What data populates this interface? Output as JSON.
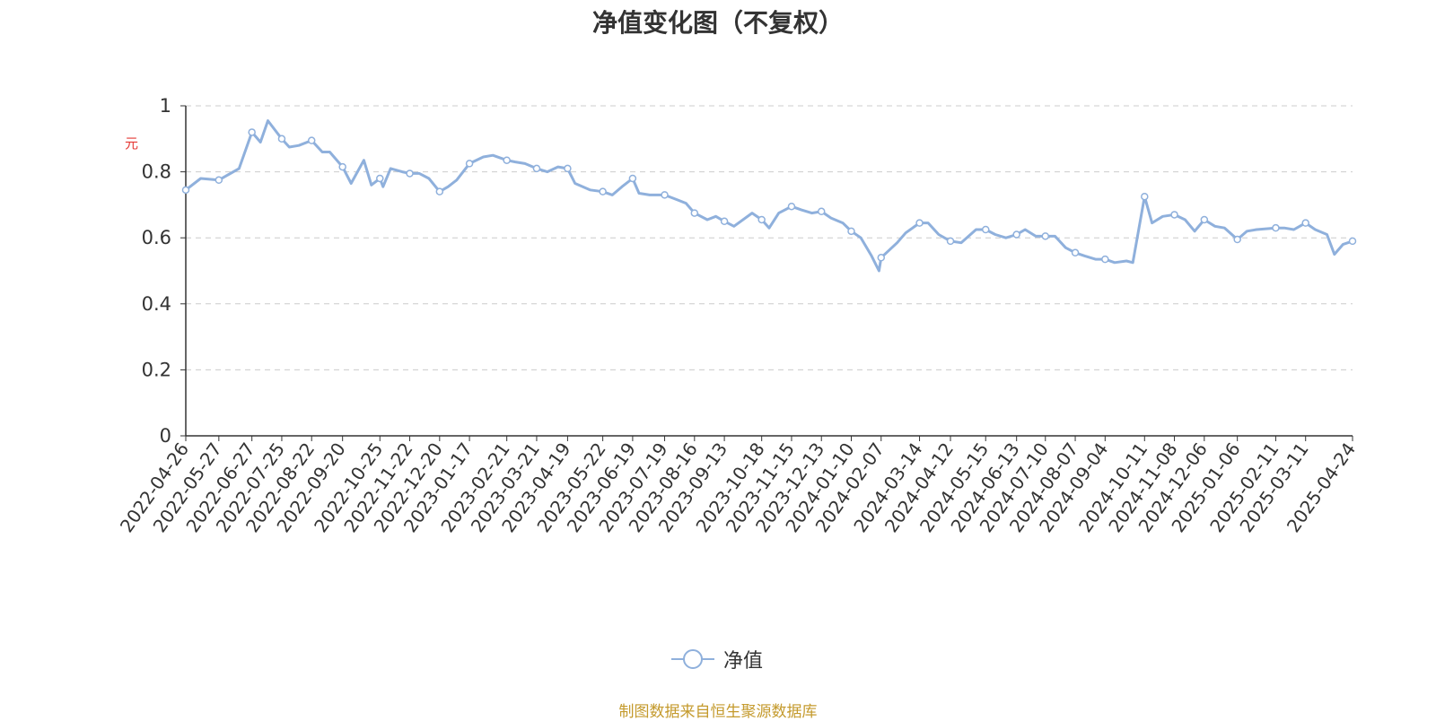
{
  "title": "净值变化图（不复权）",
  "unit_label": "元",
  "legend_label": "净值",
  "source": "制图数据来自恒生聚源数据库",
  "colors": {
    "line": "#8fb0dc",
    "marker_fill": "#ffffff",
    "grid": "#cccccc",
    "axis": "#333333",
    "unit": "#e53935",
    "source": "#c49a2c"
  },
  "chart_data": {
    "type": "line",
    "title": "净值变化图（不复权）",
    "ylabel": "元",
    "ylim": [
      0,
      1
    ],
    "yticks": [
      "0",
      "0.2",
      "0.4",
      "0.6",
      "0.8",
      "1"
    ],
    "grid": true,
    "legend_position": "bottom",
    "xticks": [
      "2022-04-26",
      "2022-05-27",
      "2022-06-27",
      "2022-07-25",
      "2022-08-22",
      "2022-09-20",
      "2022-10-25",
      "2022-11-22",
      "2022-12-20",
      "2023-01-17",
      "2023-02-21",
      "2023-03-21",
      "2023-04-19",
      "2023-05-22",
      "2023-06-19",
      "2023-07-19",
      "2023-08-16",
      "2023-09-13",
      "2023-10-18",
      "2023-11-15",
      "2023-12-13",
      "2024-01-10",
      "2024-02-07",
      "2024-03-14",
      "2024-04-12",
      "2024-05-15",
      "2024-06-13",
      "2024-07-10",
      "2024-08-07",
      "2024-09-04",
      "2024-10-11",
      "2024-11-08",
      "2024-12-06",
      "2025-01-06",
      "2025-02-11",
      "2025-03-11",
      "2025-04-24"
    ],
    "series": [
      {
        "name": "净值",
        "x": [
          "2022-04-26",
          "2022-05-10",
          "2022-05-27",
          "2022-06-15",
          "2022-06-27",
          "2022-07-05",
          "2022-07-12",
          "2022-07-25",
          "2022-08-01",
          "2022-08-10",
          "2022-08-22",
          "2022-09-01",
          "2022-09-08",
          "2022-09-20",
          "2022-09-28",
          "2022-10-10",
          "2022-10-17",
          "2022-10-25",
          "2022-10-28",
          "2022-11-04",
          "2022-11-15",
          "2022-11-22",
          "2022-12-01",
          "2022-12-10",
          "2022-12-20",
          "2022-12-28",
          "2023-01-05",
          "2023-01-17",
          "2023-01-30",
          "2023-02-08",
          "2023-02-21",
          "2023-03-01",
          "2023-03-10",
          "2023-03-21",
          "2023-03-31",
          "2023-04-10",
          "2023-04-19",
          "2023-04-26",
          "2023-05-10",
          "2023-05-22",
          "2023-05-31",
          "2023-06-09",
          "2023-06-19",
          "2023-06-25",
          "2023-07-05",
          "2023-07-19",
          "2023-07-31",
          "2023-08-08",
          "2023-08-16",
          "2023-08-28",
          "2023-09-05",
          "2023-09-13",
          "2023-09-22",
          "2023-10-09",
          "2023-10-18",
          "2023-10-25",
          "2023-11-03",
          "2023-11-15",
          "2023-11-24",
          "2023-12-04",
          "2023-12-13",
          "2023-12-22",
          "2024-01-02",
          "2024-01-10",
          "2024-01-19",
          "2024-01-29",
          "2024-02-05",
          "2024-02-07",
          "2024-02-22",
          "2024-03-01",
          "2024-03-14",
          "2024-03-22",
          "2024-04-01",
          "2024-04-12",
          "2024-04-22",
          "2024-05-06",
          "2024-05-15",
          "2024-05-24",
          "2024-06-03",
          "2024-06-13",
          "2024-06-21",
          "2024-07-01",
          "2024-07-10",
          "2024-07-19",
          "2024-07-29",
          "2024-08-07",
          "2024-08-16",
          "2024-08-26",
          "2024-09-04",
          "2024-09-13",
          "2024-09-24",
          "2024-09-30",
          "2024-10-11",
          "2024-10-18",
          "2024-10-28",
          "2024-11-08",
          "2024-11-18",
          "2024-11-27",
          "2024-12-06",
          "2024-12-16",
          "2024-12-25",
          "2025-01-06",
          "2025-01-15",
          "2025-01-24",
          "2025-02-11",
          "2025-02-19",
          "2025-02-28",
          "2025-03-11",
          "2025-03-20",
          "2025-03-31",
          "2025-04-07",
          "2025-04-15",
          "2025-04-24"
        ],
        "values": [
          0.745,
          0.78,
          0.775,
          0.81,
          0.92,
          0.89,
          0.955,
          0.9,
          0.875,
          0.88,
          0.895,
          0.86,
          0.86,
          0.815,
          0.765,
          0.835,
          0.76,
          0.78,
          0.755,
          0.81,
          0.8,
          0.795,
          0.795,
          0.78,
          0.74,
          0.755,
          0.775,
          0.825,
          0.845,
          0.85,
          0.835,
          0.83,
          0.825,
          0.81,
          0.8,
          0.815,
          0.81,
          0.765,
          0.745,
          0.74,
          0.73,
          0.755,
          0.78,
          0.735,
          0.73,
          0.73,
          0.715,
          0.705,
          0.675,
          0.655,
          0.665,
          0.65,
          0.635,
          0.675,
          0.655,
          0.63,
          0.675,
          0.695,
          0.685,
          0.675,
          0.68,
          0.66,
          0.645,
          0.62,
          0.6,
          0.545,
          0.5,
          0.54,
          0.585,
          0.615,
          0.645,
          0.645,
          0.61,
          0.59,
          0.585,
          0.625,
          0.625,
          0.61,
          0.6,
          0.61,
          0.625,
          0.605,
          0.605,
          0.605,
          0.57,
          0.555,
          0.545,
          0.535,
          0.535,
          0.525,
          0.53,
          0.525,
          0.725,
          0.645,
          0.665,
          0.67,
          0.655,
          0.62,
          0.655,
          0.635,
          0.63,
          0.595,
          0.62,
          0.625,
          0.63,
          0.63,
          0.625,
          0.645,
          0.625,
          0.61,
          0.55,
          0.58,
          0.59
        ]
      }
    ]
  }
}
